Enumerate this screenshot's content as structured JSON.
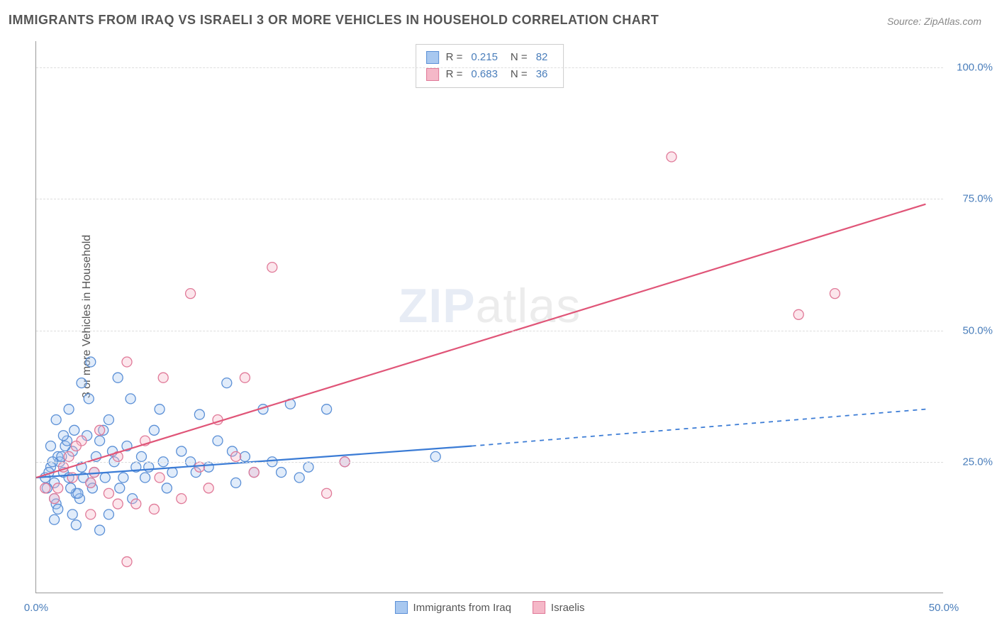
{
  "title": "IMMIGRANTS FROM IRAQ VS ISRAELI 3 OR MORE VEHICLES IN HOUSEHOLD CORRELATION CHART",
  "source": "Source: ZipAtlas.com",
  "ylabel": "3 or more Vehicles in Household",
  "watermark_bold": "ZIP",
  "watermark_thin": "atlas",
  "chart": {
    "type": "scatter-with-regression",
    "background_color": "#ffffff",
    "grid_color": "#dddddd",
    "axis_color": "#999999",
    "tick_color": "#4a7ebb",
    "label_color": "#555555",
    "title_fontsize": 18,
    "label_fontsize": 16,
    "tick_fontsize": 15,
    "xlim": [
      0,
      50
    ],
    "ylim": [
      0,
      105
    ],
    "yticks": [
      25,
      50,
      75,
      100
    ],
    "ytick_labels": [
      "25.0%",
      "50.0%",
      "75.0%",
      "100.0%"
    ],
    "xticks": [
      0,
      50
    ],
    "xtick_labels": [
      "0.0%",
      "50.0%"
    ],
    "marker_radius": 7,
    "marker_stroke_width": 1.3,
    "marker_fill_opacity": 0.35,
    "line_width": 2.2,
    "series": [
      {
        "name": "Immigrants from Iraq",
        "color_fill": "#a8c8f0",
        "color_stroke": "#5a8fd6",
        "line_color": "#3a7bd5",
        "R": "0.215",
        "N": "82",
        "regression": {
          "x1": 0,
          "y1": 22,
          "x2": 24,
          "y2": 28,
          "x2_dash": 49,
          "y2_dash": 35
        },
        "points": [
          [
            0.5,
            22
          ],
          [
            0.8,
            24
          ],
          [
            1.0,
            21
          ],
          [
            1.2,
            26
          ],
          [
            1.5,
            23
          ],
          [
            1.8,
            22
          ],
          [
            2.0,
            27
          ],
          [
            2.2,
            19
          ],
          [
            2.5,
            24
          ],
          [
            2.8,
            30
          ],
          [
            3.0,
            21
          ],
          [
            1.0,
            18
          ],
          [
            1.3,
            25
          ],
          [
            1.6,
            28
          ],
          [
            1.9,
            20
          ],
          [
            2.1,
            31
          ],
          [
            0.7,
            23
          ],
          [
            1.1,
            17
          ],
          [
            1.4,
            26
          ],
          [
            3.2,
            23
          ],
          [
            3.5,
            29
          ],
          [
            3.8,
            22
          ],
          [
            4.0,
            33
          ],
          [
            4.3,
            25
          ],
          [
            4.6,
            20
          ],
          [
            5.0,
            28
          ],
          [
            5.5,
            24
          ],
          [
            6.0,
            22
          ],
          [
            6.5,
            31
          ],
          [
            7.0,
            25
          ],
          [
            3.0,
            44
          ],
          [
            2.5,
            40
          ],
          [
            4.0,
            15
          ],
          [
            3.5,
            12
          ],
          [
            4.5,
            41
          ],
          [
            5.2,
            37
          ],
          [
            6.8,
            35
          ],
          [
            7.5,
            23
          ],
          [
            8.0,
            27
          ],
          [
            8.5,
            25
          ],
          [
            9.0,
            34
          ],
          [
            9.5,
            24
          ],
          [
            10.0,
            29
          ],
          [
            10.5,
            40
          ],
          [
            11.0,
            21
          ],
          [
            11.5,
            26
          ],
          [
            12.0,
            23
          ],
          [
            12.5,
            35
          ],
          [
            13.0,
            25
          ],
          [
            14.0,
            36
          ],
          [
            15.0,
            24
          ],
          [
            16.0,
            35
          ],
          [
            17.0,
            25
          ],
          [
            0.6,
            20
          ],
          [
            0.9,
            25
          ],
          [
            1.7,
            29
          ],
          [
            2.6,
            22
          ],
          [
            3.3,
            26
          ],
          [
            1.1,
            33
          ],
          [
            1.8,
            35
          ],
          [
            2.4,
            18
          ],
          [
            2.9,
            37
          ],
          [
            3.7,
            31
          ],
          [
            4.2,
            27
          ],
          [
            5.8,
            26
          ],
          [
            2.0,
            15
          ],
          [
            1.2,
            16
          ],
          [
            0.8,
            28
          ],
          [
            1.5,
            30
          ],
          [
            2.3,
            19
          ],
          [
            3.1,
            20
          ],
          [
            4.8,
            22
          ],
          [
            5.3,
            18
          ],
          [
            6.2,
            24
          ],
          [
            7.2,
            20
          ],
          [
            8.8,
            23
          ],
          [
            10.8,
            27
          ],
          [
            13.5,
            23
          ],
          [
            14.5,
            22
          ],
          [
            22.0,
            26
          ],
          [
            1.0,
            14
          ],
          [
            2.2,
            13
          ]
        ]
      },
      {
        "name": "Israelis",
        "color_fill": "#f5b8c8",
        "color_stroke": "#e07998",
        "line_color": "#e05578",
        "R": "0.683",
        "N": "36",
        "regression": {
          "x1": 0,
          "y1": 22,
          "x2": 49,
          "y2": 74,
          "x2_dash": 49,
          "y2_dash": 74
        },
        "points": [
          [
            0.5,
            20
          ],
          [
            1.0,
            18
          ],
          [
            1.5,
            24
          ],
          [
            2.0,
            22
          ],
          [
            2.5,
            29
          ],
          [
            3.0,
            21
          ],
          [
            3.5,
            31
          ],
          [
            4.0,
            19
          ],
          [
            4.5,
            26
          ],
          [
            5.0,
            44
          ],
          [
            5.5,
            17
          ],
          [
            6.0,
            29
          ],
          [
            7.0,
            41
          ],
          [
            8.0,
            18
          ],
          [
            8.5,
            57
          ],
          [
            9.0,
            24
          ],
          [
            10.0,
            33
          ],
          [
            11.0,
            26
          ],
          [
            11.5,
            41
          ],
          [
            12.0,
            23
          ],
          [
            13.0,
            62
          ],
          [
            16.0,
            19
          ],
          [
            17.0,
            25
          ],
          [
            5.0,
            6
          ],
          [
            3.0,
            15
          ],
          [
            4.5,
            17
          ],
          [
            6.5,
            16
          ],
          [
            35.0,
            83
          ],
          [
            42.0,
            53
          ],
          [
            44.0,
            57
          ],
          [
            1.2,
            20
          ],
          [
            2.2,
            28
          ],
          [
            3.2,
            23
          ],
          [
            1.8,
            26
          ],
          [
            6.8,
            22
          ],
          [
            9.5,
            20
          ]
        ]
      }
    ],
    "bottom_legend": [
      {
        "label": "Immigrants from Iraq",
        "fill": "#a8c8f0",
        "stroke": "#5a8fd6"
      },
      {
        "label": "Israelis",
        "fill": "#f5b8c8",
        "stroke": "#e07998"
      }
    ]
  }
}
